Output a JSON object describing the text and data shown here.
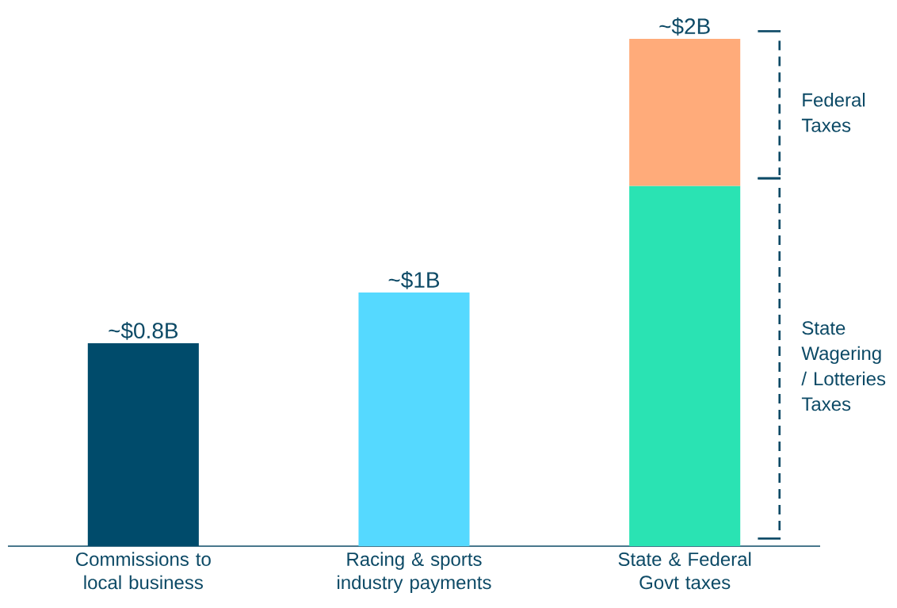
{
  "chart_data": {
    "type": "bar",
    "stacked": true,
    "categories": [
      "Commissions to local business",
      "Racing & sports industry payments",
      "State & Federal Govt taxes"
    ],
    "series": [
      {
        "colors": [
          "#004b6b",
          "#55d9ff",
          "#2ae3b3"
        ],
        "values": [
          0.8,
          1,
          1.42
        ],
        "value_labels": [
          "~$0.8B",
          "~$1B",
          null
        ]
      },
      {
        "color": "#ffab7a",
        "values": [
          null,
          null,
          0.58
        ]
      }
    ],
    "totals": [
      null,
      null,
      "~$2B"
    ],
    "annotations": [
      "Federal Taxes",
      "State Wagering / Lotteries Taxes"
    ]
  }
}
